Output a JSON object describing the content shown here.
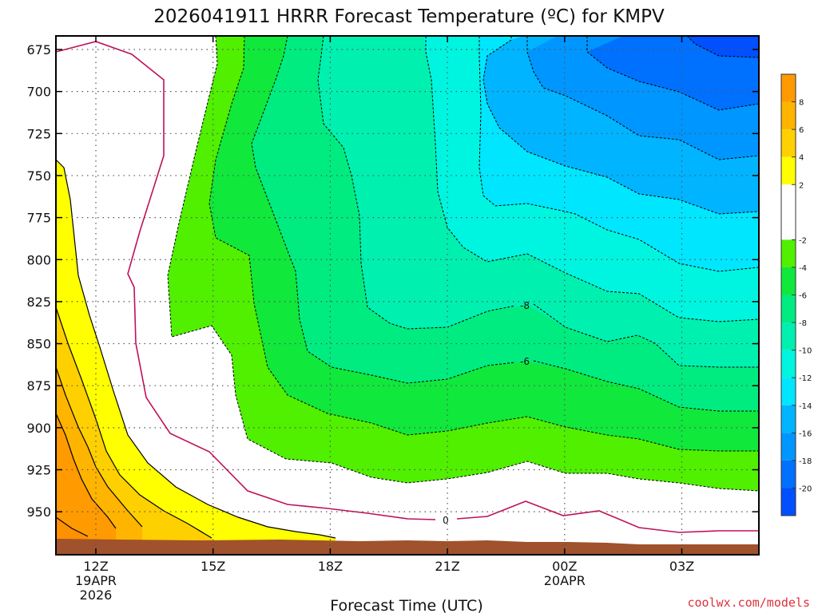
{
  "title": "2026041911 HRRR Forecast Temperature (ºC) for KMPV",
  "credit": "coolwx.com/models",
  "colors": {
    "credit": "#e0303a",
    "freezing_line": "#c0105a",
    "ground": "#a0522d"
  },
  "chart_data": {
    "type": "time-height contour",
    "title": "2026041911 HRRR Forecast Temperature (ºC) for KMPV",
    "xlabel": "Forecast Time (UTC)",
    "ylabel": "",
    "y_axis_reversed": true,
    "y_ticks": [
      "675",
      "700",
      "725",
      "750",
      "775",
      "800",
      "825",
      "850",
      "875",
      "900",
      "925",
      "950"
    ],
    "x_ticks": [
      {
        "line1": "12Z",
        "line2": "19APR",
        "line3": "2026"
      },
      {
        "line1": "15Z",
        "line2": "",
        "line3": ""
      },
      {
        "line1": "18Z",
        "line2": "",
        "line3": ""
      },
      {
        "line1": "21Z",
        "line2": "",
        "line3": ""
      },
      {
        "line1": "00Z",
        "line2": "20APR",
        "line3": ""
      },
      {
        "line1": "03Z",
        "line2": "",
        "line3": ""
      }
    ],
    "grid": "dotted",
    "contour_labels": [
      "-8",
      "-6",
      "0"
    ],
    "colorbar": {
      "bands": [
        {
          "from": -22,
          "to": -20,
          "color": "#0050ff"
        },
        {
          "from": -20,
          "to": -18,
          "color": "#0070ff"
        },
        {
          "from": -18,
          "to": -16,
          "color": "#0096ff"
        },
        {
          "from": -16,
          "to": -14,
          "color": "#00b4ff"
        },
        {
          "from": -14,
          "to": -12,
          "color": "#00e6ff"
        },
        {
          "from": -12,
          "to": -10,
          "color": "#00f5e0"
        },
        {
          "from": -10,
          "to": -8,
          "color": "#00f0b0"
        },
        {
          "from": -8,
          "to": -6,
          "color": "#00ec80"
        },
        {
          "from": -6,
          "to": -4,
          "color": "#10e83c"
        },
        {
          "from": -4,
          "to": -2,
          "color": "#50f000"
        },
        {
          "from": -2,
          "to": 2,
          "color": "#ffffff"
        },
        {
          "from": 2,
          "to": 4,
          "color": "#ffff00"
        },
        {
          "from": 4,
          "to": 6,
          "color": "#ffd000"
        },
        {
          "from": 6,
          "to": 8,
          "color": "#ffb400"
        },
        {
          "from": 8,
          "to": 10,
          "color": "#ff9a00"
        }
      ],
      "tick_labels": [
        "8",
        "6",
        "4",
        "2",
        "-2",
        "-4",
        "-6",
        "-8",
        "-10",
        "-12",
        "-14",
        "-16",
        "-18",
        "-20"
      ]
    }
  }
}
